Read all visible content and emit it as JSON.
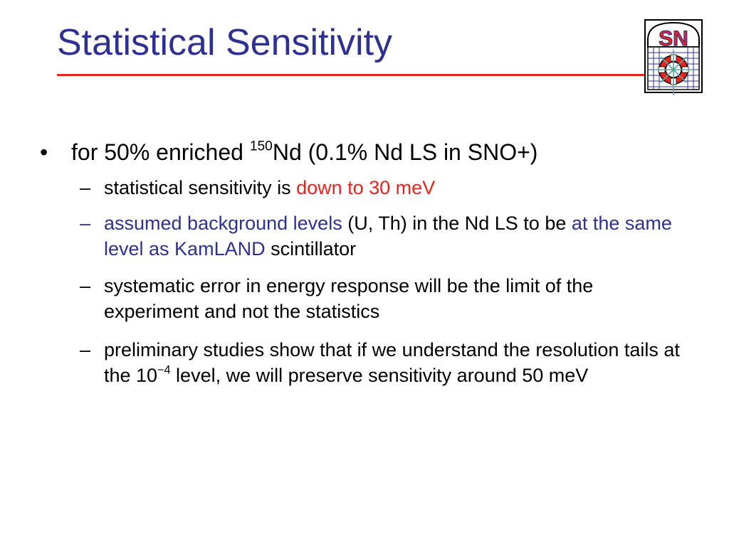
{
  "title": "Statistical Sensitivity",
  "logo": {
    "text": "SN",
    "colors": {
      "red": "#e8251c",
      "blue": "#2e3192",
      "teal": "#5aa6a0"
    }
  },
  "colors": {
    "title": "#2e3192",
    "rule": "#e8251c",
    "highlight_red": "#e8251c",
    "highlight_blue": "#2e3192"
  },
  "bullets": {
    "main": {
      "marker": "•",
      "prefix": "for 50% enriched ",
      "superscript": "150",
      "suffix": "Nd (0.1% Nd LS in SNO+)"
    },
    "sub": [
      {
        "marker": "–",
        "text_a": "statistical sensitivity is ",
        "highlight": "down to 30 meV"
      },
      {
        "marker": "–",
        "highlight_a": "assumed background levels",
        "text_a": " (U, Th) in the Nd LS to be ",
        "highlight_b": "at the same level as KamLAND",
        "text_b": " scintillator"
      },
      {
        "marker": "–",
        "text": "systematic error in energy response will be the limit of the experiment and not the statistics"
      },
      {
        "marker": "–",
        "text_a": "preliminary studies show that if we understand the resolution tails at the 10",
        "superscript": "−4",
        "text_b": " level, we will preserve sensitivity around 50 meV"
      }
    ]
  }
}
